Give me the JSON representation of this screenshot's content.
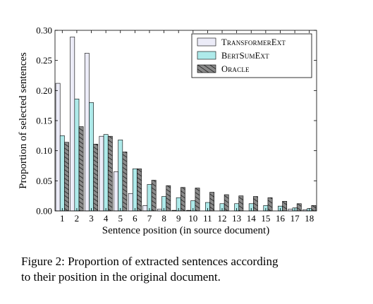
{
  "chart_data": {
    "type": "bar",
    "categories": [
      "1",
      "2",
      "3",
      "4",
      "5",
      "6",
      "7",
      "8",
      "9",
      "10",
      "11",
      "12",
      "13",
      "14",
      "15",
      "16",
      "17",
      "18"
    ],
    "series": [
      {
        "name": "TransformerExt",
        "color": "#ececf8",
        "pattern": "none",
        "values": [
          0.212,
          0.289,
          0.262,
          0.124,
          0.065,
          0.029,
          0.009,
          0.003,
          0.001,
          0.001,
          0.0,
          0.0,
          0.0,
          0.0,
          0.0,
          0.0,
          0.003,
          0.002
        ]
      },
      {
        "name": "BertSumExt",
        "color": "#aeeaea",
        "pattern": "none",
        "values": [
          0.125,
          0.186,
          0.18,
          0.127,
          0.118,
          0.07,
          0.044,
          0.024,
          0.022,
          0.017,
          0.014,
          0.012,
          0.012,
          0.012,
          0.009,
          0.008,
          0.005,
          0.004
        ]
      },
      {
        "name": "Oracle",
        "color": "#7a7a7a",
        "pattern": "hatch",
        "values": [
          0.114,
          0.14,
          0.111,
          0.124,
          0.098,
          0.07,
          0.051,
          0.042,
          0.039,
          0.038,
          0.031,
          0.027,
          0.025,
          0.024,
          0.022,
          0.016,
          0.012,
          0.009
        ]
      }
    ],
    "xlabel": "Sentence position (in source document)",
    "ylabel": "Proportion of selected sentences",
    "ylim": [
      0,
      0.3
    ],
    "yticks": [
      "0.00",
      "0.05",
      "0.10",
      "0.15",
      "0.20",
      "0.25",
      "0.30"
    ],
    "legend_position": "top-right",
    "grid": false
  },
  "caption": {
    "line1": "Figure 2: Proportion of extracted sentences according",
    "line2": "to their position in the original document."
  }
}
